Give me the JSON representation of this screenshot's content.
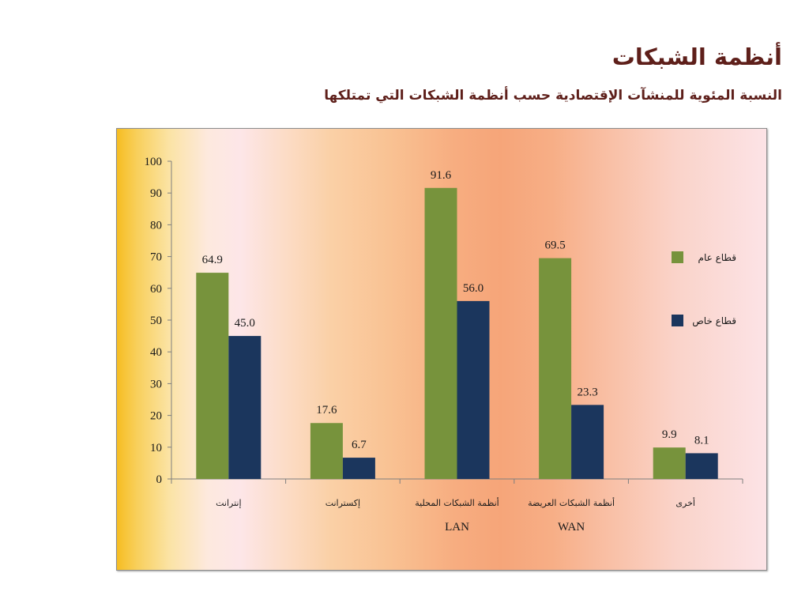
{
  "slide": {
    "title": "أنظمة الشبكات",
    "subtitle": "النسبة المئوية للمنشآت الإقتصادية حسب أنظمة الشبكات التي تمتلكها"
  },
  "colors": {
    "title_text": "#5e1f1a"
  },
  "chart_data": {
    "type": "bar",
    "categories": [
      "إنترانت",
      "إكسترانت",
      "أنظمة الشبكات المحلية\nLAN",
      "أنظمة الشبكات العريضة\nWAN",
      "أخرى"
    ],
    "series": [
      {
        "name": "قطاع عام",
        "color": "#77933c",
        "values": [
          64.9,
          17.6,
          91.6,
          69.5,
          9.9
        ]
      },
      {
        "name": "قطاع خاص",
        "color": "#1b365d",
        "values": [
          45.0,
          6.7,
          56.0,
          23.3,
          8.1
        ]
      }
    ],
    "ylim": [
      0,
      100
    ],
    "yticks": [
      0,
      10,
      20,
      30,
      40,
      50,
      60,
      70,
      80,
      90,
      100
    ],
    "xlabel": "",
    "ylabel": "",
    "data_labels": true,
    "grid": false,
    "legend": "right"
  }
}
